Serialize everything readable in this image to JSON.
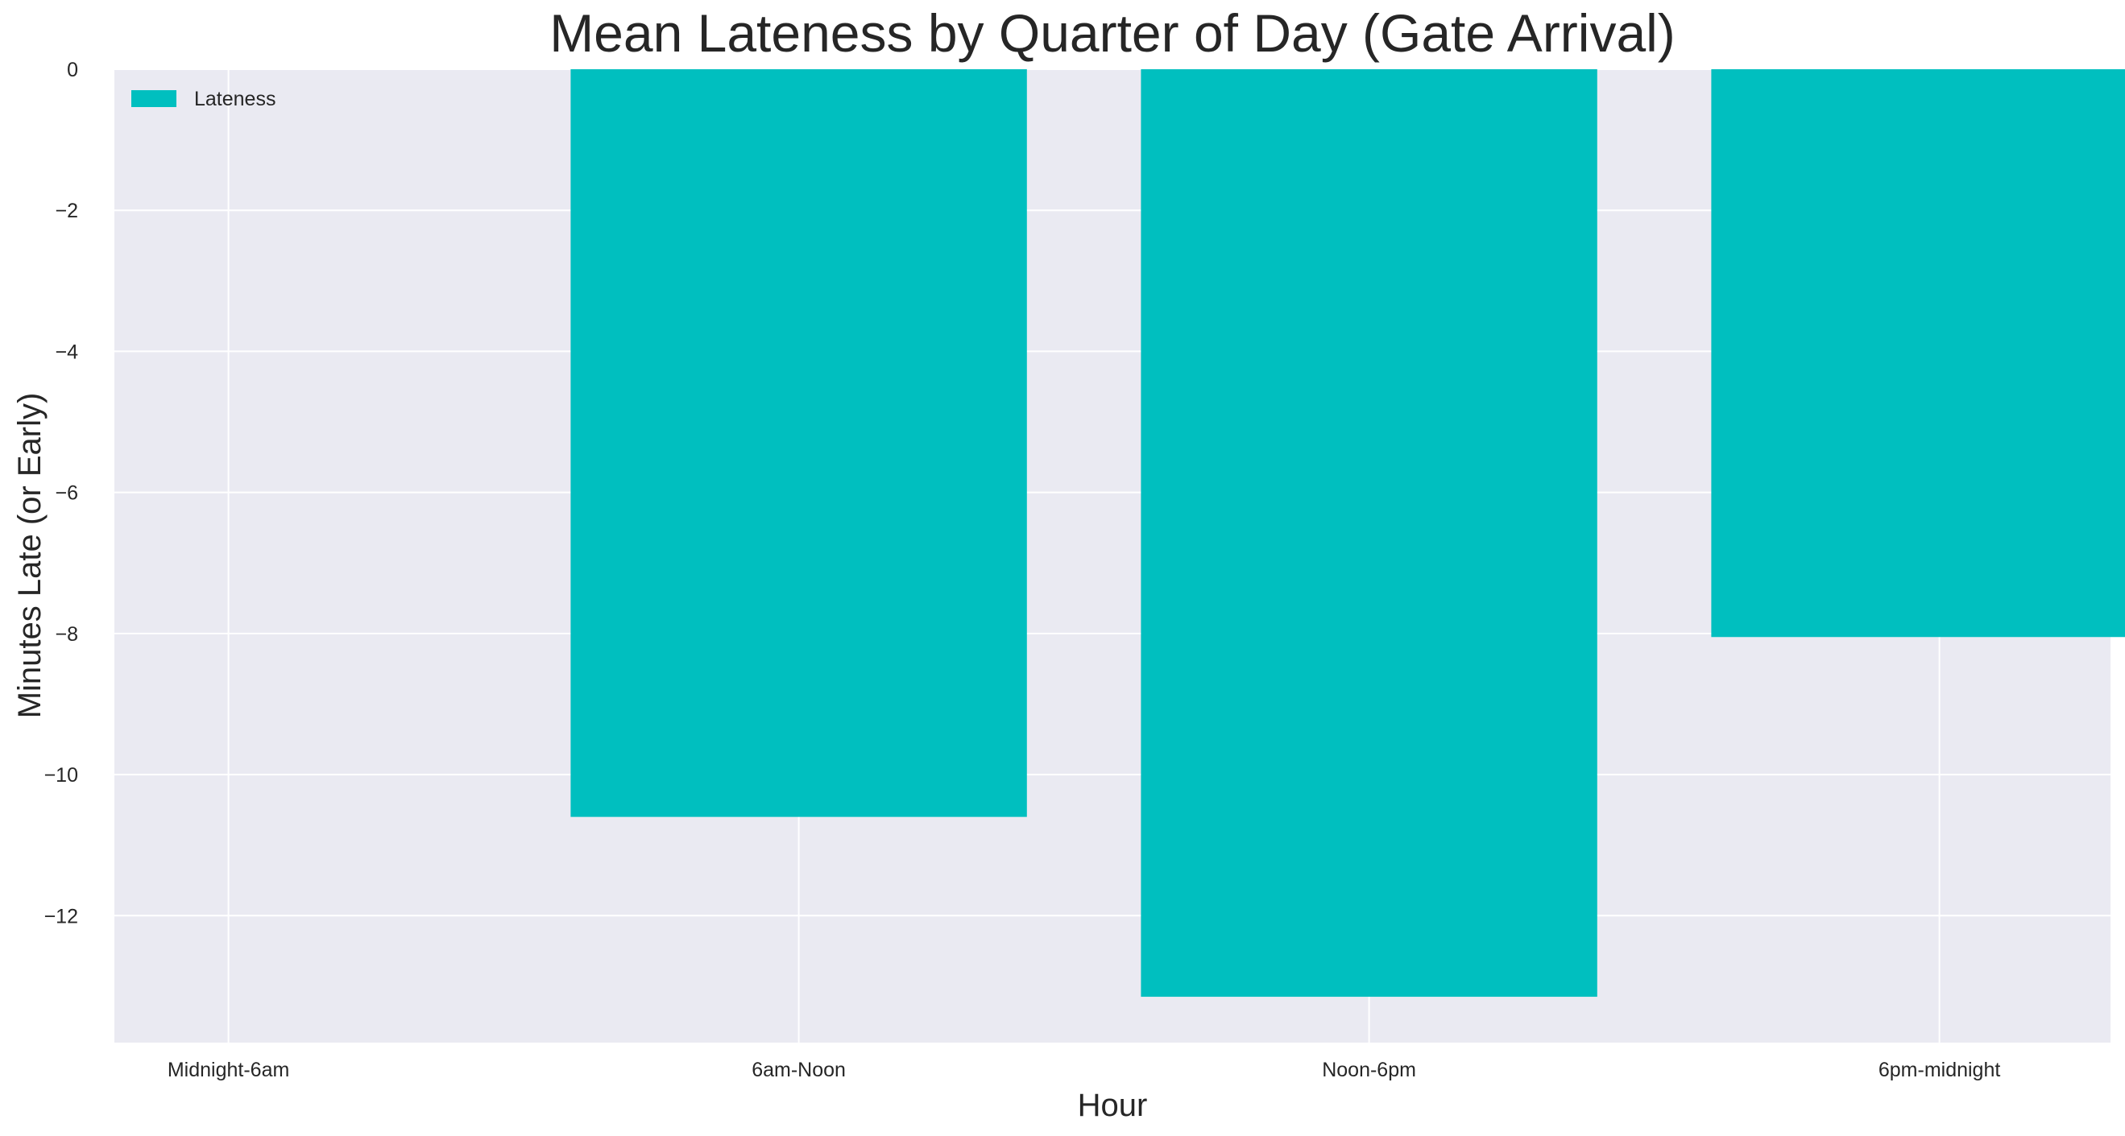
{
  "chart_data": {
    "type": "bar",
    "title": "Mean Lateness by Quarter of Day (Gate Arrival)",
    "xlabel": "Hour",
    "ylabel": "Minutes Late (or Early)",
    "categories": [
      "Midnight-6am",
      "6am-Noon",
      "Noon-6pm",
      "6pm-midnight"
    ],
    "series": [
      {
        "name": "Lateness",
        "values": [
          null,
          -10.6,
          -13.15,
          -8.05
        ]
      }
    ],
    "ylim": [
      -13.8,
      0
    ],
    "yticks": [
      0,
      -2,
      -4,
      -6,
      -8,
      -10,
      -12
    ],
    "ytick_labels": [
      "0",
      "−2",
      "−4",
      "−6",
      "−8",
      "−10",
      "−12"
    ],
    "grid": true,
    "legend_position": "top-left",
    "colors": {
      "bar": "#00BFBF",
      "plot_background": "#EAEAF2",
      "grid": "#FFFFFF"
    }
  }
}
